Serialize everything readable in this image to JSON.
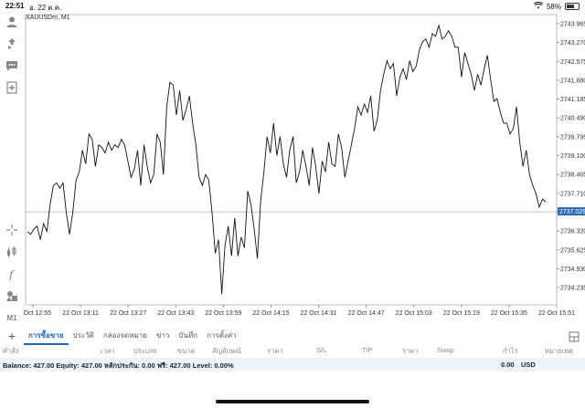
{
  "status": {
    "time": "22:51",
    "date": "อ. 22 ต.ค.",
    "battery": "58%",
    "battery_level": 0.58
  },
  "chart": {
    "symbol_label": "XAUUSDm, M1",
    "current_price": "2737.029"
  },
  "tabs": [
    {
      "label": "การซื้อขาย",
      "active": true
    },
    {
      "label": "ประวัติ",
      "active": false
    },
    {
      "label": "กล่องจดหมาย",
      "active": false
    },
    {
      "label": "ข่าว",
      "active": false
    },
    {
      "label": "บันทึก",
      "active": false
    },
    {
      "label": "การตั้งค่า",
      "active": false
    }
  ],
  "columns": [
    "คำสั่ง",
    "เวลา",
    "ประเภท",
    "ขนาด",
    "สัญลักษณ์",
    "ราคา",
    "S/L",
    "T/P",
    "ราคา",
    "Swap",
    "กำไร",
    "หมายเหตุ"
  ],
  "balance": {
    "text": "Balance: 427.00 Equity: 427.00 หลักประกัน: 0.00 ฟรี: 427.00 Level: 0.00%",
    "profit": "0.00",
    "currency": "USD"
  },
  "toolbar_left_bottom_label": "M1",
  "chart_data": {
    "type": "line",
    "symbol": "XAUUSDm",
    "timeframe": "M1",
    "x_tick_labels": [
      "22 Oct 12:55",
      "22 Oct 13:11",
      "22 Oct 13:27",
      "22 Oct 13:43",
      "22 Oct 13:59",
      "22 Oct 14:15",
      "22 Oct 14:31",
      "22 Oct 14:47",
      "22 Oct 15:03",
      "22 Oct 15:19",
      "22 Oct 15:35",
      "22 Oct 15:51"
    ],
    "y_tick_labels": [
      "2743.965",
      "2743.270",
      "2742.575",
      "2741.880",
      "2741.185",
      "2740.490",
      "2739.795",
      "2739.100",
      "2738.405",
      "2737.710",
      "2737.015",
      "2736.320",
      "2735.625",
      "2734.930",
      "2734.235"
    ],
    "ylim": [
      2733.6,
      2744.3
    ],
    "current_price": 2737.029,
    "series": [
      {
        "values": [
          2736.3,
          2736.2,
          2736.4,
          2736.5,
          2736.0,
          2736.6,
          2736.3,
          2737.3,
          2738.0,
          2738.1,
          2737.9,
          2738.1,
          2737.0,
          2736.2,
          2737.0,
          2738.2,
          2738.5,
          2739.3,
          2738.8,
          2739.9,
          2739.7,
          2738.7,
          2739.5,
          2739.4,
          2739.2,
          2739.6,
          2739.3,
          2739.5,
          2739.4,
          2739.7,
          2739.5,
          2738.9,
          2738.3,
          2738.6,
          2739.3,
          2738.0,
          2739.5,
          2738.7,
          2738.1,
          2738.4,
          2739.9,
          2739.6,
          2738.4,
          2740.9,
          2741.8,
          2741.7,
          2740.6,
          2741.5,
          2740.4,
          2740.8,
          2741.3,
          2740.3,
          2739.5,
          2738.3,
          2738.0,
          2738.4,
          2738.2,
          2737.0,
          2735.5,
          2736.0,
          2734.0,
          2735.8,
          2736.5,
          2735.4,
          2736.8,
          2735.4,
          2736.1,
          2735.7,
          2737.8,
          2737.3,
          2736.4,
          2735.3,
          2737.4,
          2738.5,
          2739.8,
          2739.2,
          2740.3,
          2739.1,
          2739.8,
          2738.8,
          2738.3,
          2739.3,
          2739.8,
          2738.1,
          2738.5,
          2739.3,
          2738.7,
          2738.0,
          2739.4,
          2738.7,
          2737.7,
          2738.9,
          2738.5,
          2739.6,
          2738.8,
          2738.7,
          2739.9,
          2739.4,
          2738.3,
          2738.9,
          2739.5,
          2740.1,
          2740.9,
          2740.6,
          2741.0,
          2740.7,
          2741.3,
          2740.0,
          2740.4,
          2741.5,
          2742.1,
          2742.6,
          2742.3,
          2742.5,
          2741.3,
          2742.0,
          2742.3,
          2741.9,
          2742.6,
          2742.2,
          2742.4,
          2743.0,
          2743.3,
          2743.4,
          2743.1,
          2743.6,
          2743.5,
          2743.9,
          2743.4,
          2743.5,
          2743.7,
          2743.5,
          2743.1,
          2743.1,
          2742.0,
          2742.9,
          2742.5,
          2742.1,
          2741.5,
          2742.1,
          2741.7,
          2742.3,
          2742.8,
          2741.9,
          2741.1,
          2741.2,
          2740.7,
          2740.3,
          2740.3,
          2739.9,
          2740.1,
          2740.9,
          2739.6,
          2738.7,
          2739.3,
          2738.4,
          2738.0,
          2737.7,
          2737.2,
          2737.5,
          2737.4
        ]
      }
    ],
    "grid": true
  }
}
